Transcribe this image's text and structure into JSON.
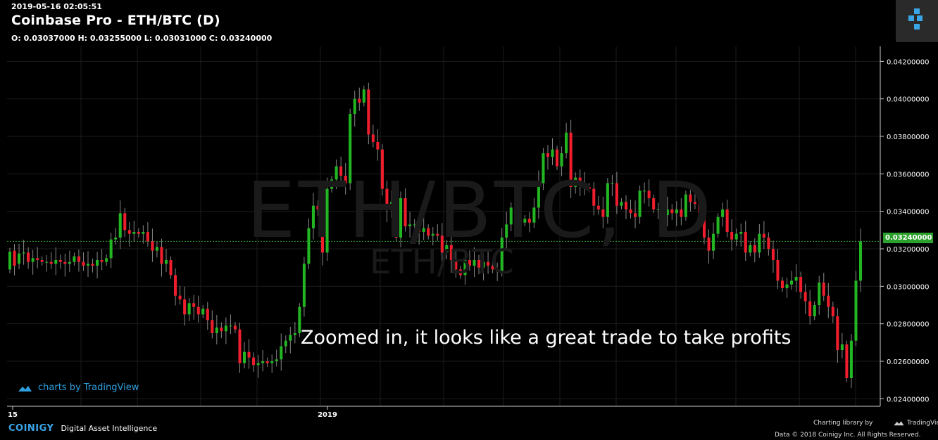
{
  "header": {
    "timestamp": "2019-05-16 02:05:51",
    "title": "Coinbase Pro - ETH/BTC (D)",
    "ohlc": "O: 0.03037000 H: 0.03255000 L: 0.03031000 C: 0.03240000"
  },
  "watermark": {
    "main": "ETH/BTC, D",
    "sub": "ETH/BTC"
  },
  "annotation": "Zoomed in, it looks like a great trade to take profits",
  "tradingview_link": "charts by TradingView",
  "current_price_label": "0.03240000",
  "footer": {
    "brand": "COINIGY",
    "tagline": "Digital Asset Intelligence",
    "charting": "Charting library by",
    "tv": "TradingView",
    "copyright": "Data © 2018  Coinigy Inc. All Rights Reserved."
  },
  "colors": {
    "up": "#22b622",
    "down": "#f01e2d",
    "grid": "#1c1c1c",
    "accent": "#3aa5e6"
  },
  "chart_data": {
    "type": "candlestick",
    "x_tick_labels": [
      "15",
      "2019"
    ],
    "y_ticks": [
      0.024,
      0.026,
      0.028,
      0.03,
      0.032,
      0.034,
      0.036,
      0.038,
      0.04,
      0.042
    ],
    "y_tick_labels": [
      "0.02400000",
      "0.02600000",
      "0.02800000",
      "0.03000000",
      "0.03200000",
      "0.03400000",
      "0.03600000",
      "0.03800000",
      "0.04000000",
      "0.04200000"
    ],
    "ylim": [
      0.0236,
      0.0428
    ],
    "last_price": 0.0324,
    "close": [
      0.03185,
      0.0311,
      0.03175,
      0.0318,
      0.0313,
      0.0315,
      0.0314,
      0.0313,
      0.0313,
      0.0312,
      0.0314,
      0.0313,
      0.0312,
      0.0313,
      0.0316,
      0.0313,
      0.0311,
      0.0312,
      0.0311,
      0.0314,
      0.0313,
      0.0315,
      0.0325,
      0.0326,
      0.0339,
      0.033,
      0.0328,
      0.0329,
      0.0328,
      0.0329,
      0.0324,
      0.0319,
      0.0321,
      0.0312,
      0.0314,
      0.0306,
      0.0295,
      0.0293,
      0.0285,
      0.0291,
      0.0289,
      0.0285,
      0.0288,
      0.0282,
      0.0275,
      0.0278,
      0.0276,
      0.0279,
      0.0279,
      0.0277,
      0.0259,
      0.0265,
      0.0262,
      0.0258,
      0.0259,
      0.026,
      0.0259,
      0.026,
      0.0261,
      0.0268,
      0.0271,
      0.0274,
      0.0275,
      0.0289,
      0.0312,
      0.0331,
      0.0343,
      0.0341,
      0.0318,
      0.0352,
      0.0357,
      0.0364,
      0.0359,
      0.0355,
      0.0392,
      0.04,
      0.0398,
      0.0405,
      0.0381,
      0.0377,
      0.0373,
      0.0352,
      0.0341,
      0.0345,
      0.0326,
      0.0347,
      0.0332,
      0.0333,
      0.0333,
      0.0329,
      0.0331,
      0.0327,
      0.0328,
      0.0327,
      0.0318,
      0.0322,
      0.0314,
      0.0309,
      0.0306,
      0.0314,
      0.0311,
      0.0314,
      0.031,
      0.0313,
      0.0311,
      0.0309,
      0.0308,
      0.0326,
      0.0333,
      0.0342,
      0.0336,
      0.0334,
      0.0336,
      0.0334,
      0.0342,
      0.0355,
      0.0371,
      0.0369,
      0.0373,
      0.0364,
      0.0371,
      0.0382,
      0.0353,
      0.0358,
      0.0355,
      0.0353,
      0.0352,
      0.0343,
      0.0341,
      0.0337,
      0.0355,
      0.0355,
      0.0343,
      0.0345,
      0.0341,
      0.0339,
      0.0337,
      0.0351,
      0.0351,
      0.0347,
      0.0341,
      0.0341,
      0.0338,
      0.0341,
      0.0339,
      0.0341,
      0.0337,
      0.0349,
      0.0345,
      0.0344,
      0.0339,
      0.0326,
      0.0319,
      0.0328,
      0.0337,
      0.0341,
      0.0329,
      0.0325,
      0.0328,
      0.0329,
      0.0318,
      0.0322,
      0.0318,
      0.0328,
      0.0326,
      0.032,
      0.0314,
      0.0303,
      0.0299,
      0.0301,
      0.0303,
      0.0305,
      0.0297,
      0.0292,
      0.0284,
      0.029,
      0.0302,
      0.0295,
      0.0289,
      0.0284,
      0.0266,
      0.0269,
      0.0251,
      0.0271,
      0.0303,
      0.0324
    ],
    "open": [
      0.0309,
      0.0319,
      0.0312,
      0.03175,
      0.0318,
      0.0313,
      0.0315,
      0.0314,
      0.0313,
      0.0313,
      0.0312,
      0.0314,
      0.0313,
      0.0312,
      0.0313,
      0.0316,
      0.0313,
      0.0311,
      0.0312,
      0.0311,
      0.0314,
      0.0313,
      0.0315,
      0.0325,
      0.0326,
      0.0339,
      0.033,
      0.0328,
      0.0329,
      0.0328,
      0.0329,
      0.0324,
      0.0319,
      0.0321,
      0.0312,
      0.0314,
      0.0306,
      0.0295,
      0.0293,
      0.0285,
      0.0291,
      0.0289,
      0.0285,
      0.0288,
      0.0282,
      0.0275,
      0.0278,
      0.0276,
      0.0279,
      0.0279,
      0.0277,
      0.0259,
      0.0265,
      0.0262,
      0.0258,
      0.0259,
      0.026,
      0.0259,
      0.026,
      0.0261,
      0.0268,
      0.0271,
      0.0274,
      0.0275,
      0.0289,
      0.0312,
      0.0331,
      0.0343,
      0.0341,
      0.0318,
      0.0352,
      0.0357,
      0.0364,
      0.0359,
      0.0355,
      0.0392,
      0.04,
      0.0398,
      0.0405,
      0.0381,
      0.0377,
      0.0373,
      0.0352,
      0.0341,
      0.0345,
      0.0326,
      0.0347,
      0.0332,
      0.0333,
      0.0333,
      0.0329,
      0.0331,
      0.0327,
      0.0328,
      0.0327,
      0.0318,
      0.0322,
      0.0314,
      0.0309,
      0.0306,
      0.0314,
      0.0311,
      0.0314,
      0.031,
      0.0313,
      0.0311,
      0.0309,
      0.0308,
      0.0326,
      0.0333,
      0.0342,
      0.0336,
      0.0334,
      0.0336,
      0.0334,
      0.0342,
      0.0355,
      0.0371,
      0.0369,
      0.0373,
      0.0364,
      0.0371,
      0.0382,
      0.0353,
      0.0358,
      0.0355,
      0.0353,
      0.0352,
      0.0343,
      0.0341,
      0.0337,
      0.0355,
      0.0355,
      0.0343,
      0.0345,
      0.0341,
      0.0339,
      0.0337,
      0.0351,
      0.0351,
      0.0347,
      0.0341,
      0.0341,
      0.0338,
      0.0341,
      0.0339,
      0.0341,
      0.0337,
      0.0349,
      0.0345,
      0.0344,
      0.0339,
      0.0326,
      0.0319,
      0.0328,
      0.0337,
      0.0341,
      0.0329,
      0.0325,
      0.0328,
      0.0329,
      0.0318,
      0.0322,
      0.0318,
      0.0328,
      0.0326,
      0.032,
      0.0314,
      0.0303,
      0.0299,
      0.0301,
      0.0303,
      0.0305,
      0.0297,
      0.0292,
      0.0284,
      0.029,
      0.0302,
      0.0295,
      0.0289,
      0.0284,
      0.0266,
      0.0269,
      0.0251,
      0.0271,
      0.0303
    ]
  }
}
